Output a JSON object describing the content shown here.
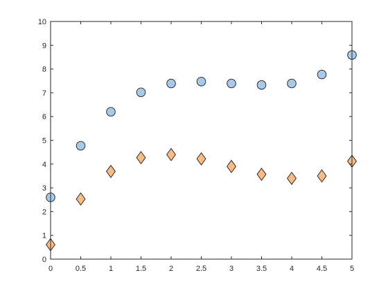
{
  "chart_data": {
    "type": "scatter",
    "title": "",
    "xlabel": "",
    "ylabel": "",
    "xlim": [
      0,
      5
    ],
    "ylim": [
      0,
      10
    ],
    "grid": false,
    "x_ticks": [
      0,
      0.5,
      1,
      1.5,
      2,
      2.5,
      3,
      3.5,
      4,
      4.5,
      5
    ],
    "y_ticks": [
      0,
      1,
      2,
      3,
      4,
      5,
      6,
      7,
      8,
      9,
      10
    ],
    "series": [
      {
        "marker": "circle",
        "color": "#a6cae8",
        "points": [
          {
            "x": 0,
            "y": 2.6
          },
          {
            "x": 0.5,
            "y": 4.77
          },
          {
            "x": 1,
            "y": 6.2
          },
          {
            "x": 1.5,
            "y": 7.02
          },
          {
            "x": 2,
            "y": 7.39
          },
          {
            "x": 2.5,
            "y": 7.47
          },
          {
            "x": 3,
            "y": 7.39
          },
          {
            "x": 3.5,
            "y": 7.33
          },
          {
            "x": 4,
            "y": 7.39
          },
          {
            "x": 4.5,
            "y": 7.77
          },
          {
            "x": 5,
            "y": 8.59
          }
        ]
      },
      {
        "marker": "diamond",
        "color": "#f9bd84",
        "points": [
          {
            "x": 0,
            "y": 0.61
          },
          {
            "x": 0.5,
            "y": 2.53
          },
          {
            "x": 1,
            "y": 3.69
          },
          {
            "x": 1.5,
            "y": 4.27
          },
          {
            "x": 2,
            "y": 4.4
          },
          {
            "x": 2.5,
            "y": 4.22
          },
          {
            "x": 3,
            "y": 3.9
          },
          {
            "x": 3.5,
            "y": 3.57
          },
          {
            "x": 4,
            "y": 3.4
          },
          {
            "x": 4.5,
            "y": 3.5
          },
          {
            "x": 5,
            "y": 4.12
          }
        ]
      }
    ]
  }
}
